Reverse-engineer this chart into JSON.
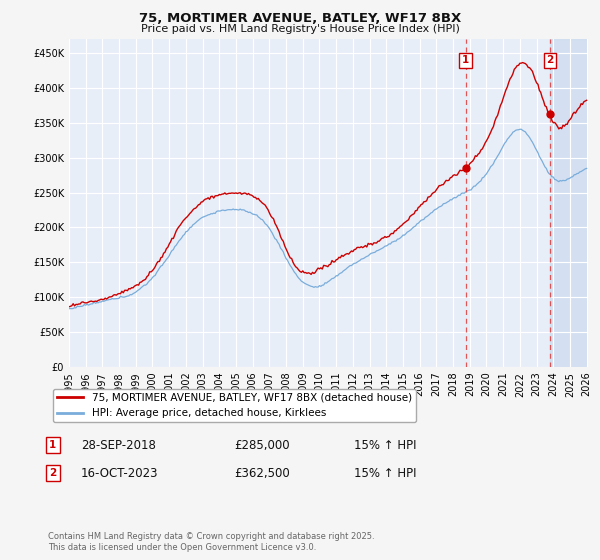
{
  "title": "75, MORTIMER AVENUE, BATLEY, WF17 8BX",
  "subtitle": "Price paid vs. HM Land Registry's House Price Index (HPI)",
  "ylim": [
    0,
    470000
  ],
  "yticks": [
    0,
    50000,
    100000,
    150000,
    200000,
    250000,
    300000,
    350000,
    400000,
    450000
  ],
  "year_start": 1995,
  "year_end": 2026,
  "sale1_date": 2018.75,
  "sale1_price": 285000,
  "sale1_label": "1",
  "sale1_text": "28-SEP-2018",
  "sale1_pct": "15% ↑ HPI",
  "sale2_date": 2023.79,
  "sale2_price": 362500,
  "sale2_label": "2",
  "sale2_text": "16-OCT-2023",
  "sale2_pct": "15% ↑ HPI",
  "hpi_color": "#7aaddb",
  "price_color": "#cc0000",
  "vline_color": "#dd4444",
  "bg_color": "#e8eef8",
  "shade_color": "#d0dcf0",
  "grid_color": "#ffffff",
  "legend_label1": "75, MORTIMER AVENUE, BATLEY, WF17 8BX (detached house)",
  "legend_label2": "HPI: Average price, detached house, Kirklees",
  "footer": "Contains HM Land Registry data © Crown copyright and database right 2025.\nThis data is licensed under the Open Government Licence v3.0."
}
